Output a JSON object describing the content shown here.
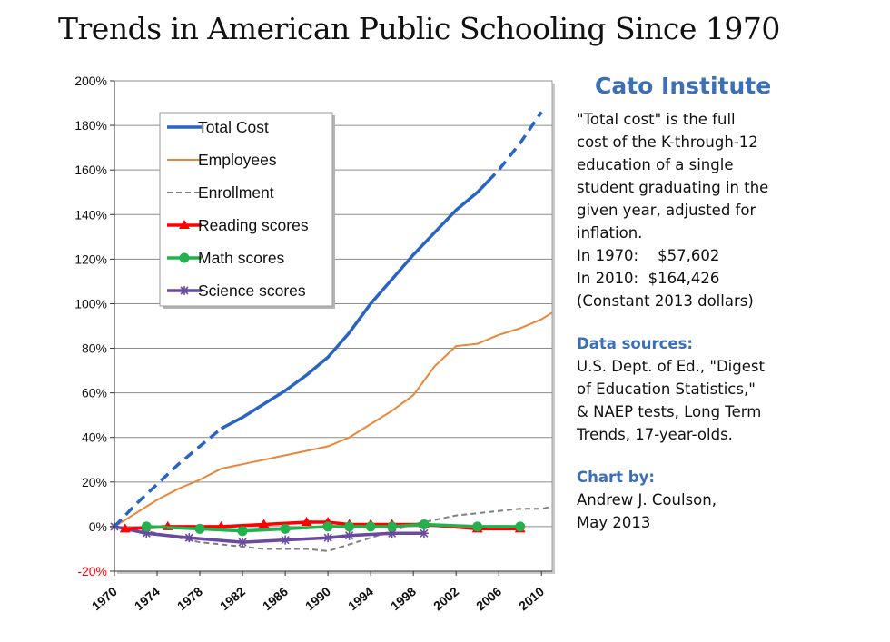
{
  "title": "Trends in American Public Schooling Since 1970",
  "sidebar": {
    "org": "Cato Institute",
    "desc_lines": [
      "\"Total cost\" is the full",
      "cost of the K-through-12",
      "education of a single",
      "student graduating in the",
      "given year, adjusted for",
      "inflation.",
      "In 1970:    $57,602",
      "In 2010:  $164,426",
      "(Constant 2013 dollars)"
    ],
    "sources_heading": "Data sources:",
    "sources_lines": [
      "U.S. Dept. of Ed., \"Digest",
      "of Education Statistics,\"",
      "& NAEP tests, Long Term",
      "Trends, 17-year-olds."
    ],
    "credit_heading": "Chart by:",
    "credit_lines": [
      "Andrew J. Coulson,",
      "May 2013"
    ]
  },
  "chart_data": {
    "type": "line",
    "title": "",
    "xlabel": "",
    "ylabel": "",
    "xlim": [
      1970,
      2011
    ],
    "ylim": [
      -20,
      200
    ],
    "y_ticks": [
      -20,
      0,
      20,
      40,
      60,
      80,
      100,
      120,
      140,
      160,
      180,
      200
    ],
    "y_tick_labels": [
      "-20%",
      "0%",
      "20%",
      "40%",
      "60%",
      "80%",
      "100%",
      "120%",
      "140%",
      "160%",
      "180%",
      "200%"
    ],
    "x_tick_labels": [
      "1970",
      "1974",
      "1978",
      "1982",
      "1986",
      "1990",
      "1994",
      "1998",
      "2002",
      "2006",
      "2010"
    ],
    "grid": true,
    "legend_position": "top-left",
    "series": [
      {
        "name": "Total Cost",
        "color": "#2a64c3",
        "style": "solid-dashed",
        "x": [
          1970,
          1972,
          1974,
          1976,
          1978,
          1980,
          1982,
          1984,
          1986,
          1988,
          1990,
          1992,
          1994,
          1996,
          1998,
          2000,
          2002,
          2004,
          2006,
          2008,
          2010
        ],
        "values": [
          0,
          10,
          19,
          28,
          36,
          44,
          49,
          55,
          61,
          68,
          76,
          87,
          100,
          111,
          122,
          132,
          142,
          150,
          160,
          172,
          186
        ],
        "dashed_ranges": [
          [
            1970,
            1980
          ],
          [
            2005,
            2010
          ]
        ]
      },
      {
        "name": "Employees",
        "color": "#e8873a",
        "style": "solid",
        "x": [
          1970,
          1972,
          1974,
          1976,
          1978,
          1980,
          1982,
          1984,
          1986,
          1988,
          1990,
          1992,
          1994,
          1996,
          1998,
          2000,
          2002,
          2004,
          2006,
          2008,
          2010,
          2011
        ],
        "values": [
          0,
          6,
          12,
          17,
          21,
          26,
          28,
          30,
          32,
          34,
          36,
          40,
          46,
          52,
          59,
          72,
          81,
          82,
          86,
          89,
          93,
          96
        ]
      },
      {
        "name": "Enrollment",
        "color": "#7f7f7f",
        "style": "dashed",
        "x": [
          1970,
          1972,
          1974,
          1976,
          1978,
          1980,
          1982,
          1984,
          1986,
          1988,
          1990,
          1992,
          1994,
          1996,
          1998,
          2000,
          2002,
          2004,
          2006,
          2008,
          2010,
          2011
        ],
        "values": [
          0,
          -1,
          -3,
          -5,
          -7,
          -8,
          -9,
          -10,
          -10,
          -10,
          -11,
          -8,
          -5,
          -2,
          1,
          3,
          5,
          6,
          7,
          8,
          8,
          9
        ]
      },
      {
        "name": "Reading scores",
        "color": "#ff0000",
        "style": "marker-triangle",
        "x": [
          1971,
          1975,
          1980,
          1984,
          1988,
          1990,
          1992,
          1994,
          1996,
          1999,
          2004,
          2008
        ],
        "values": [
          -1,
          0,
          0,
          1,
          2,
          2,
          1,
          1,
          1,
          1,
          -1,
          -1
        ]
      },
      {
        "name": "Math scores",
        "color": "#22b14c",
        "style": "marker-circle",
        "x": [
          1973,
          1978,
          1982,
          1986,
          1990,
          1992,
          1994,
          1996,
          1999,
          2004,
          2008
        ],
        "values": [
          0,
          -1,
          -2,
          -1,
          0,
          0,
          0,
          0,
          1,
          0,
          0
        ]
      },
      {
        "name": "Science scores",
        "color": "#6a4a9e",
        "style": "marker-star",
        "x": [
          1970,
          1973,
          1977,
          1982,
          1986,
          1990,
          1992,
          1996,
          1999
        ],
        "values": [
          0,
          -3,
          -5,
          -7,
          -6,
          -5,
          -4,
          -3,
          -3
        ]
      }
    ]
  }
}
